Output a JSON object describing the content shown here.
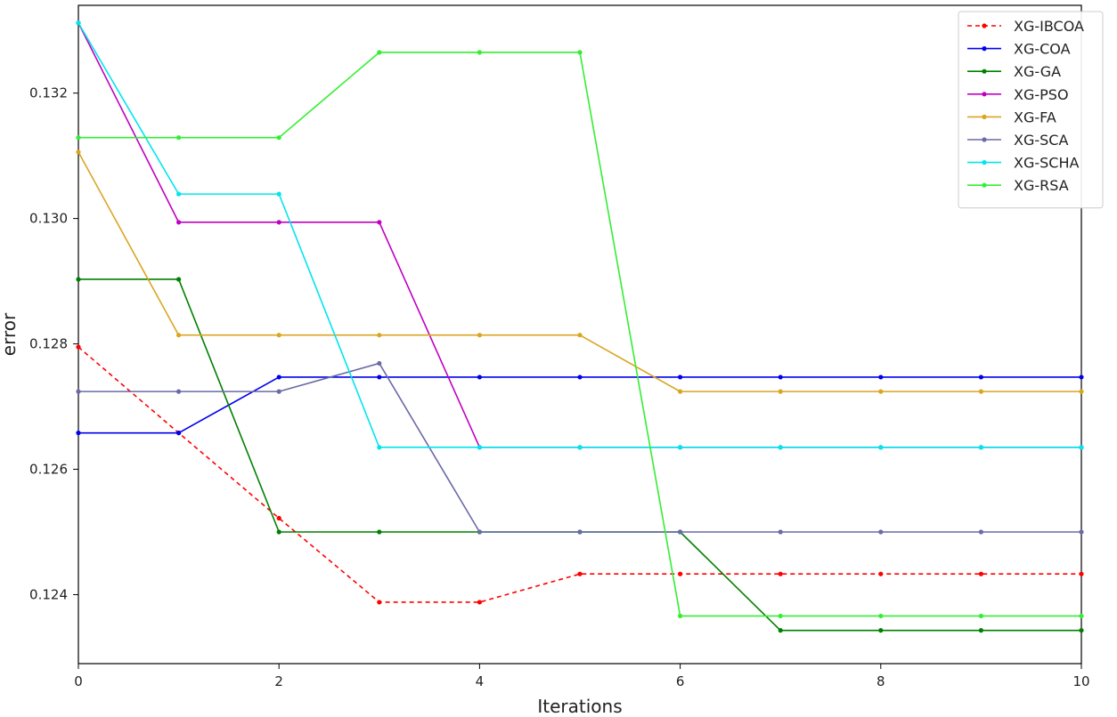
{
  "chart_data": {
    "type": "line",
    "title": "",
    "xlabel": "Iterations",
    "ylabel": "error",
    "xlim": [
      0,
      10
    ],
    "ylim": [
      0.1229,
      0.1334
    ],
    "xticks": [
      "0",
      "2",
      "4",
      "6",
      "8",
      "10"
    ],
    "yticks": [
      "0.124",
      "0.126",
      "0.128",
      "0.130",
      "0.132"
    ],
    "grid": false,
    "legend_position": "top-right",
    "x": [
      0,
      1,
      2,
      3,
      4,
      5,
      6,
      7,
      8,
      9,
      10
    ],
    "series": [
      {
        "name": "XG-IBCOA",
        "color": "#ff0000",
        "dashed": true,
        "values": [
          0.12795,
          0.12658,
          0.12522,
          0.12388,
          0.12388,
          0.12433,
          0.12433,
          0.12433,
          0.12433,
          0.12433,
          0.12433
        ]
      },
      {
        "name": "XG-COA",
        "color": "#0000ee",
        "dashed": false,
        "values": [
          0.12658,
          0.12658,
          0.12747,
          0.12747,
          0.12747,
          0.12747,
          0.12747,
          0.12747,
          0.12747,
          0.12747,
          0.12747
        ]
      },
      {
        "name": "XG-GA",
        "color": "#008000",
        "dashed": false,
        "values": [
          0.12903,
          0.12903,
          0.125,
          0.125,
          0.125,
          0.125,
          0.125,
          0.12343,
          0.12343,
          0.12343,
          0.12343
        ]
      },
      {
        "name": "XG-PSO",
        "color": "#c000c0",
        "dashed": false,
        "values": [
          0.13312,
          0.12994,
          0.12994,
          0.12994,
          0.12635,
          0.12635,
          0.12635,
          0.12635,
          0.12635,
          0.12635,
          0.12635
        ]
      },
      {
        "name": "XG-FA",
        "color": "#daa520",
        "dashed": false,
        "values": [
          0.13106,
          0.12814,
          0.12814,
          0.12814,
          0.12814,
          0.12814,
          0.12724,
          0.12724,
          0.12724,
          0.12724,
          0.12724
        ]
      },
      {
        "name": "XG-SCA",
        "color": "#6a6aa8",
        "dashed": false,
        "values": [
          0.12724,
          0.12724,
          0.12724,
          0.12769,
          0.125,
          0.125,
          0.125,
          0.125,
          0.125,
          0.125,
          0.125
        ]
      },
      {
        "name": "XG-SCHA",
        "color": "#00e5ee",
        "dashed": false,
        "values": [
          0.13312,
          0.13039,
          0.13039,
          0.12635,
          0.12635,
          0.12635,
          0.12635,
          0.12635,
          0.12635,
          0.12635,
          0.12635
        ]
      },
      {
        "name": "XG-RSA",
        "color": "#33ee33",
        "dashed": false,
        "values": [
          0.13129,
          0.13129,
          0.13129,
          0.13265,
          0.13265,
          0.13265,
          0.12366,
          0.12366,
          0.12366,
          0.12366,
          0.12366
        ]
      }
    ]
  }
}
